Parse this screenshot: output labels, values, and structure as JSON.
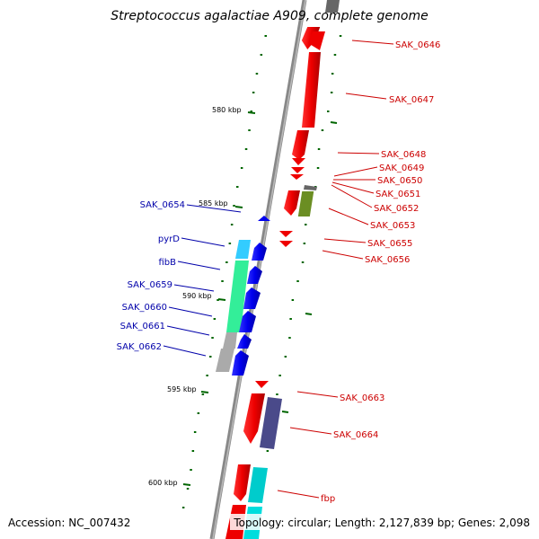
{
  "title": "Streptococcus agalactiae A909, complete genome",
  "accession": "Accession: NC_007432",
  "summary": "Topology: circular; Length: 2,127,839 bp; Genes: 2,098",
  "scale_labels": [
    "580 kbp",
    "585 kbp",
    "590 kbp",
    "595 kbp",
    "600 kbp"
  ],
  "forward_genes": [
    "SAK_0646",
    "SAK_0647",
    "SAK_0648",
    "SAK_0649",
    "SAK_0650",
    "SAK_0651",
    "SAK_0652",
    "SAK_0653",
    "SAK_0655",
    "SAK_0656",
    "SAK_0663",
    "SAK_0664",
    "fbp"
  ],
  "reverse_genes": [
    "SAK_0654",
    "pyrD",
    "fibB",
    "SAK_0659",
    "SAK_0660",
    "SAK_0661",
    "SAK_0662"
  ],
  "colors": {
    "forward_strand": "#ee0000",
    "reverse_strand": "#0000ee",
    "forward_label": "#cc0000",
    "reverse_label": "#0000aa",
    "gc_skew": "#006600",
    "backbone": "#888888"
  }
}
